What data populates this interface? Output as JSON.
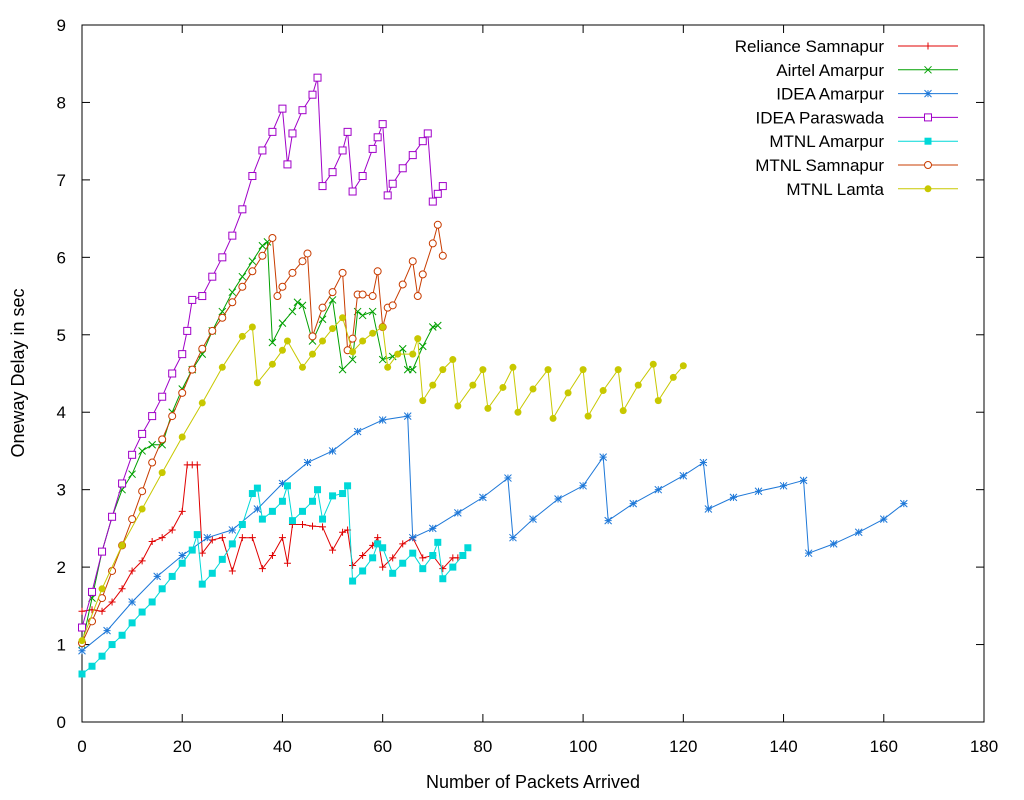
{
  "chart_data": {
    "type": "line",
    "xlabel": "Number of Packets Arrived",
    "ylabel": "Oneway Delay in sec",
    "xlim": [
      0,
      180
    ],
    "ylim": [
      0,
      9
    ],
    "xticks": [
      0,
      20,
      40,
      60,
      80,
      100,
      120,
      140,
      160,
      180
    ],
    "yticks": [
      0,
      1,
      2,
      3,
      4,
      5,
      6,
      7,
      8,
      9
    ],
    "legend_position": "top-right",
    "grid": false,
    "series": [
      {
        "name": "Reliance Samnapur",
        "color": "#e00000",
        "marker": "plus",
        "x": [
          0,
          2,
          4,
          6,
          8,
          10,
          12,
          14,
          16,
          18,
          20,
          21,
          22,
          23,
          24,
          26,
          28,
          30,
          32,
          34,
          36,
          38,
          40,
          41,
          42,
          44,
          46,
          48,
          50,
          52,
          53,
          54,
          56,
          58,
          59,
          60,
          62,
          64,
          66,
          68,
          70,
          72,
          74,
          75
        ],
        "y": [
          1.43,
          1.45,
          1.43,
          1.55,
          1.72,
          1.95,
          2.08,
          2.33,
          2.38,
          2.48,
          2.72,
          3.32,
          3.32,
          3.32,
          2.18,
          2.35,
          2.38,
          1.95,
          2.38,
          2.38,
          1.98,
          2.15,
          2.38,
          2.05,
          2.55,
          2.55,
          2.53,
          2.52,
          2.22,
          2.45,
          2.48,
          2.02,
          2.15,
          2.28,
          2.38,
          2.0,
          2.12,
          2.3,
          2.38,
          2.12,
          2.15,
          1.98,
          2.12,
          2.12
        ]
      },
      {
        "name": "Airtel Amarpur",
        "color": "#00a000",
        "marker": "cross",
        "x": [
          0,
          2,
          4,
          6,
          8,
          10,
          12,
          14,
          16,
          18,
          20,
          22,
          24,
          26,
          28,
          30,
          32,
          34,
          36,
          37,
          38,
          40,
          42,
          43,
          44,
          46,
          48,
          50,
          52,
          54,
          55,
          56,
          58,
          60,
          62,
          64,
          65,
          66,
          68,
          70,
          71
        ],
        "y": [
          1.0,
          1.6,
          2.2,
          2.65,
          3.0,
          3.2,
          3.5,
          3.58,
          3.58,
          4.0,
          4.3,
          4.55,
          4.75,
          5.05,
          5.3,
          5.55,
          5.75,
          5.95,
          6.15,
          6.2,
          4.9,
          5.15,
          5.3,
          5.42,
          5.38,
          4.92,
          5.2,
          5.45,
          4.55,
          4.68,
          5.3,
          5.25,
          5.3,
          4.68,
          4.72,
          4.82,
          4.55,
          4.55,
          4.85,
          5.1,
          5.12
        ]
      },
      {
        "name": "IDEA Amarpur",
        "color": "#1e78d8",
        "marker": "star",
        "x": [
          0,
          5,
          10,
          15,
          20,
          25,
          30,
          35,
          40,
          45,
          50,
          55,
          60,
          65,
          66,
          70,
          75,
          80,
          85,
          86,
          90,
          95,
          100,
          104,
          105,
          110,
          115,
          120,
          124,
          125,
          130,
          135,
          140,
          144,
          145,
          150,
          155,
          160,
          164
        ],
        "y": [
          0.92,
          1.18,
          1.55,
          1.88,
          2.15,
          2.38,
          2.48,
          2.75,
          3.08,
          3.35,
          3.5,
          3.75,
          3.9,
          3.95,
          2.38,
          2.5,
          2.7,
          2.9,
          3.15,
          2.38,
          2.62,
          2.88,
          3.05,
          3.42,
          2.6,
          2.82,
          3.0,
          3.18,
          3.35,
          2.75,
          2.9,
          2.98,
          3.05,
          3.12,
          2.18,
          2.3,
          2.45,
          2.62,
          2.82
        ]
      },
      {
        "name": "IDEA Paraswada",
        "color": "#a000c8",
        "marker": "square",
        "x": [
          0,
          2,
          4,
          6,
          8,
          10,
          12,
          14,
          16,
          18,
          20,
          21,
          22,
          24,
          26,
          28,
          30,
          32,
          34,
          36,
          38,
          40,
          41,
          42,
          44,
          46,
          47,
          48,
          50,
          52,
          53,
          54,
          56,
          58,
          59,
          60,
          61,
          62,
          64,
          66,
          68,
          69,
          70,
          71,
          72
        ],
        "y": [
          1.22,
          1.68,
          2.2,
          2.65,
          3.08,
          3.45,
          3.72,
          3.95,
          4.2,
          4.5,
          4.75,
          5.05,
          5.45,
          5.5,
          5.75,
          6.0,
          6.28,
          6.62,
          7.05,
          7.38,
          7.62,
          7.92,
          7.2,
          7.6,
          7.9,
          8.1,
          8.32,
          6.92,
          7.1,
          7.38,
          7.62,
          6.85,
          7.05,
          7.4,
          7.55,
          7.72,
          6.8,
          6.95,
          7.15,
          7.32,
          7.5,
          7.6,
          6.72,
          6.82,
          6.92
        ]
      },
      {
        "name": "MTNL Amarpur",
        "color": "#00d8d8",
        "marker": "filled-square",
        "x": [
          0,
          2,
          4,
          6,
          8,
          10,
          12,
          14,
          16,
          18,
          20,
          22,
          23,
          24,
          26,
          28,
          30,
          32,
          34,
          35,
          36,
          38,
          40,
          41,
          42,
          44,
          46,
          47,
          48,
          50,
          52,
          53,
          54,
          56,
          58,
          59,
          60,
          62,
          64,
          66,
          68,
          70,
          71,
          72,
          74,
          76,
          77
        ],
        "y": [
          0.62,
          0.72,
          0.85,
          1.0,
          1.12,
          1.28,
          1.42,
          1.55,
          1.72,
          1.88,
          2.05,
          2.22,
          2.42,
          1.78,
          1.92,
          2.1,
          2.3,
          2.55,
          2.95,
          3.02,
          2.62,
          2.72,
          2.85,
          3.05,
          2.6,
          2.72,
          2.85,
          3.0,
          2.62,
          2.92,
          2.95,
          3.05,
          1.82,
          1.95,
          2.12,
          2.3,
          2.25,
          1.92,
          2.05,
          2.18,
          1.98,
          2.15,
          2.32,
          1.85,
          2.0,
          2.15,
          2.25
        ]
      },
      {
        "name": "MTNL Samnapur",
        "color": "#c83c00",
        "marker": "circle",
        "x": [
          0,
          2,
          4,
          6,
          8,
          10,
          12,
          14,
          16,
          18,
          20,
          22,
          24,
          26,
          28,
          30,
          32,
          34,
          36,
          38,
          39,
          40,
          42,
          44,
          45,
          46,
          48,
          50,
          52,
          53,
          54,
          55,
          56,
          58,
          59,
          60,
          61,
          62,
          64,
          66,
          67,
          68,
          70,
          71,
          72
        ],
        "y": [
          1.02,
          1.3,
          1.6,
          1.95,
          2.28,
          2.62,
          2.98,
          3.35,
          3.65,
          3.95,
          4.25,
          4.55,
          4.82,
          5.05,
          5.22,
          5.42,
          5.62,
          5.82,
          6.02,
          6.25,
          5.5,
          5.62,
          5.8,
          5.95,
          6.05,
          4.98,
          5.35,
          5.55,
          5.8,
          4.8,
          4.95,
          5.52,
          5.52,
          5.5,
          5.82,
          5.1,
          5.35,
          5.38,
          5.65,
          5.95,
          5.5,
          5.78,
          6.18,
          6.42,
          6.02
        ]
      },
      {
        "name": "MTNL Lamta",
        "color": "#c8c800",
        "marker": "filled-circle",
        "x": [
          0,
          4,
          8,
          12,
          16,
          20,
          24,
          28,
          32,
          34,
          35,
          38,
          40,
          41,
          44,
          46,
          48,
          50,
          52,
          54,
          56,
          58,
          60,
          61,
          63,
          66,
          67,
          68,
          70,
          72,
          74,
          75,
          78,
          80,
          81,
          84,
          86,
          87,
          90,
          93,
          94,
          97,
          100,
          101,
          104,
          107,
          108,
          111,
          114,
          115,
          118,
          120
        ],
        "y": [
          1.05,
          1.72,
          2.28,
          2.75,
          3.22,
          3.68,
          4.12,
          4.58,
          4.98,
          5.1,
          4.38,
          4.62,
          4.8,
          4.92,
          4.58,
          4.75,
          4.92,
          5.08,
          5.22,
          4.78,
          4.92,
          5.02,
          5.1,
          4.58,
          4.75,
          4.75,
          4.95,
          4.15,
          4.35,
          4.55,
          4.68,
          4.08,
          4.35,
          4.55,
          4.05,
          4.32,
          4.58,
          4.0,
          4.3,
          4.55,
          3.92,
          4.25,
          4.55,
          3.95,
          4.28,
          4.55,
          4.02,
          4.35,
          4.62,
          4.15,
          4.45,
          4.6
        ]
      }
    ]
  }
}
